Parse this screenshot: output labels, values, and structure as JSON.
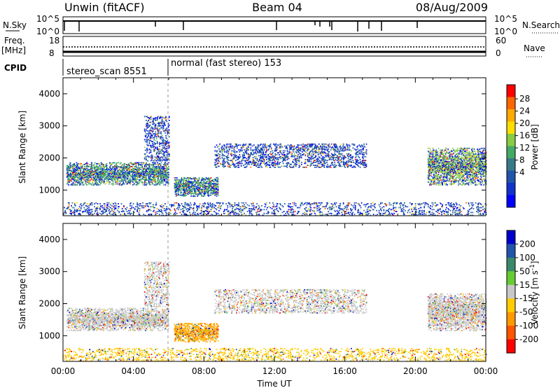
{
  "header": {
    "station": "Unwin (fitACF)",
    "beam": "Beam 04",
    "date": "08/Aug/2009"
  },
  "strip_labels": {
    "nsky": "N.Sky",
    "nsky_ticks": [
      "10^5",
      "10^0"
    ],
    "nsearch": "N.Search",
    "nsearch_ticks": [
      "10^5",
      "10^0"
    ],
    "freq_title": "Freq.",
    "freq_unit": "[MHz]",
    "freq_ticks": [
      "18",
      "8"
    ],
    "nave": "Nave",
    "nave_ticks": [
      "60",
      "0"
    ],
    "cpid": "CPID",
    "cpid_1": "stereo_scan 8551",
    "cpid_2": "normal (fast stereo) 153"
  },
  "chart_data": [
    {
      "type": "heatmap",
      "title": "Power",
      "ylabel": "Slant Range [km]",
      "xlabel": "",
      "colorbar_label": "Power [dB]",
      "colorbar_ticks": [
        "28",
        "24",
        "20",
        "16",
        "12",
        "8",
        "4"
      ],
      "colorbar_colors": [
        "#ff0000",
        "#ff6600",
        "#ffaa00",
        "#ffdd00",
        "#88cc44",
        "#44aa66",
        "#3a7a88",
        "#2255aa",
        "#1133cc",
        "#0000ff"
      ],
      "ylim": [
        200,
        4500
      ],
      "yticks": [
        "4000",
        "3000",
        "2000",
        "1000"
      ],
      "xlim_hours": [
        0,
        24
      ],
      "regions": [
        {
          "name": "band-morning",
          "t0": 0.2,
          "t1": 6.0,
          "r0": 1150,
          "r1": 1850,
          "core": "#44aa66"
        },
        {
          "name": "band-morning-upper",
          "t0": 4.6,
          "t1": 6.0,
          "r0": 1900,
          "r1": 3300,
          "core": "#2255aa"
        },
        {
          "name": "band-0700",
          "t0": 6.3,
          "t1": 8.8,
          "r0": 800,
          "r1": 1400,
          "core": "#44aa66"
        },
        {
          "name": "band-midday",
          "t0": 8.6,
          "t1": 17.2,
          "r0": 1700,
          "r1": 2450,
          "core": "#2255aa"
        },
        {
          "name": "band-evening",
          "t0": 20.7,
          "t1": 24.0,
          "r0": 1150,
          "r1": 2300,
          "core": "#88cc44"
        },
        {
          "name": "ground-near",
          "t0": 0.0,
          "t1": 24.0,
          "r0": 200,
          "r1": 620,
          "core": "#2255aa"
        }
      ]
    },
    {
      "type": "heatmap",
      "title": "Velocity",
      "ylabel": "Slant Range [km]",
      "xlabel": "Time UT",
      "colorbar_label": "Velocity [m s^-1]",
      "colorbar_ticks": [
        "200",
        "100",
        "50",
        "15",
        "-15",
        "-50",
        "-100",
        "-200"
      ],
      "colorbar_colors": [
        "#0000cc",
        "#2255aa",
        "#3a8a6a",
        "#66cc33",
        "#c8c8c8",
        "#ffcc00",
        "#ff9900",
        "#ff5500",
        "#ff0000"
      ],
      "ylim": [
        200,
        4500
      ],
      "yticks": [
        "4000",
        "3000",
        "2000",
        "1000"
      ],
      "xticks": [
        "00:00",
        "04:00",
        "08:00",
        "12:00",
        "16:00",
        "20:00",
        "00:00"
      ],
      "xlim_hours": [
        0,
        24
      ],
      "regions": [
        {
          "name": "band-morning",
          "t0": 0.2,
          "t1": 6.0,
          "r0": 1150,
          "r1": 1850,
          "core": "#c8c8c8"
        },
        {
          "name": "band-morning-upper",
          "t0": 4.6,
          "t1": 6.0,
          "r0": 1900,
          "r1": 3300,
          "core": "#c8c8c8"
        },
        {
          "name": "band-0700",
          "t0": 6.3,
          "t1": 8.8,
          "r0": 800,
          "r1": 1400,
          "core": "#ffaa00"
        },
        {
          "name": "band-midday",
          "t0": 8.6,
          "t1": 17.2,
          "r0": 1700,
          "r1": 2450,
          "core": "#c8c8c8"
        },
        {
          "name": "band-evening",
          "t0": 20.7,
          "t1": 24.0,
          "r0": 1150,
          "r1": 2300,
          "core": "#c8c8c8"
        },
        {
          "name": "ground-near",
          "t0": 0.0,
          "t1": 24.0,
          "r0": 200,
          "r1": 620,
          "core": "#ffcc00"
        }
      ]
    }
  ]
}
